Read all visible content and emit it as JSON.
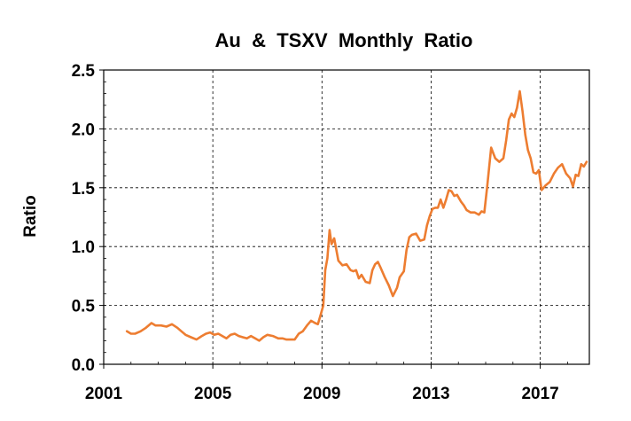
{
  "colors": {
    "line": "#ED7D31",
    "grid": "#000000",
    "axis": "#000000",
    "background": "#FFFFFF"
  },
  "chart_data": {
    "type": "line",
    "title": "Au  &  TSXV  Monthly  Ratio",
    "xlabel": "",
    "ylabel": "Ratio",
    "xlim": [
      2001,
      2018.8
    ],
    "ylim": [
      0.0,
      2.5
    ],
    "xticks": [
      2001,
      2005,
      2009,
      2013,
      2017
    ],
    "xtick_labels": [
      "2001",
      "2005",
      "2009",
      "2013",
      "2017"
    ],
    "yticks": [
      0.0,
      0.5,
      1.0,
      1.5,
      2.0,
      2.5
    ],
    "ytick_labels": [
      "0.0",
      "0.5",
      "1.0",
      "1.5",
      "2.0",
      "2.5"
    ],
    "grid": {
      "x": true,
      "y": true,
      "style": "dashed"
    },
    "legend": "none",
    "series": [
      {
        "color": "#ED7D31",
        "x": [
          2001.85,
          2002.0,
          2002.15,
          2002.35,
          2002.55,
          2002.75,
          2002.9,
          2003.1,
          2003.3,
          2003.5,
          2003.7,
          2003.85,
          2004.0,
          2004.2,
          2004.4,
          2004.6,
          2004.75,
          2004.9,
          2005.05,
          2005.2,
          2005.35,
          2005.5,
          2005.65,
          2005.8,
          2005.95,
          2006.1,
          2006.25,
          2006.4,
          2006.55,
          2006.7,
          2006.85,
          2007.0,
          2007.2,
          2007.4,
          2007.55,
          2007.7,
          2007.85,
          2008.0,
          2008.15,
          2008.3,
          2008.45,
          2008.6,
          2008.75,
          2008.85,
          2008.95,
          2009.05,
          2009.12,
          2009.2,
          2009.28,
          2009.35,
          2009.45,
          2009.6,
          2009.75,
          2009.9,
          2010.05,
          2010.15,
          2010.25,
          2010.35,
          2010.45,
          2010.6,
          2010.75,
          2010.85,
          2010.95,
          2011.05,
          2011.15,
          2011.3,
          2011.45,
          2011.6,
          2011.75,
          2011.85,
          2012.0,
          2012.1,
          2012.2,
          2012.3,
          2012.45,
          2012.6,
          2012.75,
          2012.85,
          2012.95,
          2013.05,
          2013.15,
          2013.25,
          2013.35,
          2013.45,
          2013.55,
          2013.65,
          2013.75,
          2013.85,
          2013.95,
          2014.1,
          2014.2,
          2014.3,
          2014.45,
          2014.6,
          2014.75,
          2014.85,
          2014.95,
          2015.05,
          2015.2,
          2015.35,
          2015.5,
          2015.65,
          2015.75,
          2015.85,
          2015.95,
          2016.05,
          2016.15,
          2016.25,
          2016.35,
          2016.45,
          2016.55,
          2016.65,
          2016.75,
          2016.85,
          2016.95,
          2017.05,
          2017.2,
          2017.35,
          2017.5,
          2017.65,
          2017.8,
          2017.95,
          2018.1,
          2018.2,
          2018.3,
          2018.4,
          2018.5,
          2018.6,
          2018.7
        ],
        "y": [
          0.28,
          0.26,
          0.26,
          0.28,
          0.31,
          0.35,
          0.33,
          0.33,
          0.32,
          0.34,
          0.31,
          0.28,
          0.25,
          0.23,
          0.21,
          0.24,
          0.26,
          0.27,
          0.25,
          0.26,
          0.24,
          0.22,
          0.25,
          0.26,
          0.24,
          0.23,
          0.22,
          0.24,
          0.22,
          0.2,
          0.23,
          0.25,
          0.24,
          0.22,
          0.22,
          0.21,
          0.21,
          0.21,
          0.26,
          0.28,
          0.33,
          0.37,
          0.35,
          0.34,
          0.42,
          0.5,
          0.8,
          0.9,
          1.14,
          1.02,
          1.07,
          0.88,
          0.84,
          0.85,
          0.8,
          0.79,
          0.8,
          0.73,
          0.76,
          0.7,
          0.69,
          0.8,
          0.85,
          0.87,
          0.82,
          0.74,
          0.67,
          0.58,
          0.65,
          0.74,
          0.79,
          0.97,
          1.08,
          1.1,
          1.11,
          1.05,
          1.06,
          1.18,
          1.26,
          1.32,
          1.33,
          1.33,
          1.4,
          1.33,
          1.4,
          1.48,
          1.47,
          1.43,
          1.44,
          1.38,
          1.35,
          1.31,
          1.29,
          1.29,
          1.27,
          1.3,
          1.29,
          1.5,
          1.84,
          1.75,
          1.72,
          1.75,
          1.9,
          2.08,
          2.13,
          2.1,
          2.18,
          2.32,
          2.15,
          1.95,
          1.82,
          1.75,
          1.63,
          1.62,
          1.65,
          1.48,
          1.52,
          1.55,
          1.62,
          1.67,
          1.7,
          1.62,
          1.58,
          1.51,
          1.61,
          1.6,
          1.7,
          1.68,
          1.72
        ]
      }
    ]
  }
}
